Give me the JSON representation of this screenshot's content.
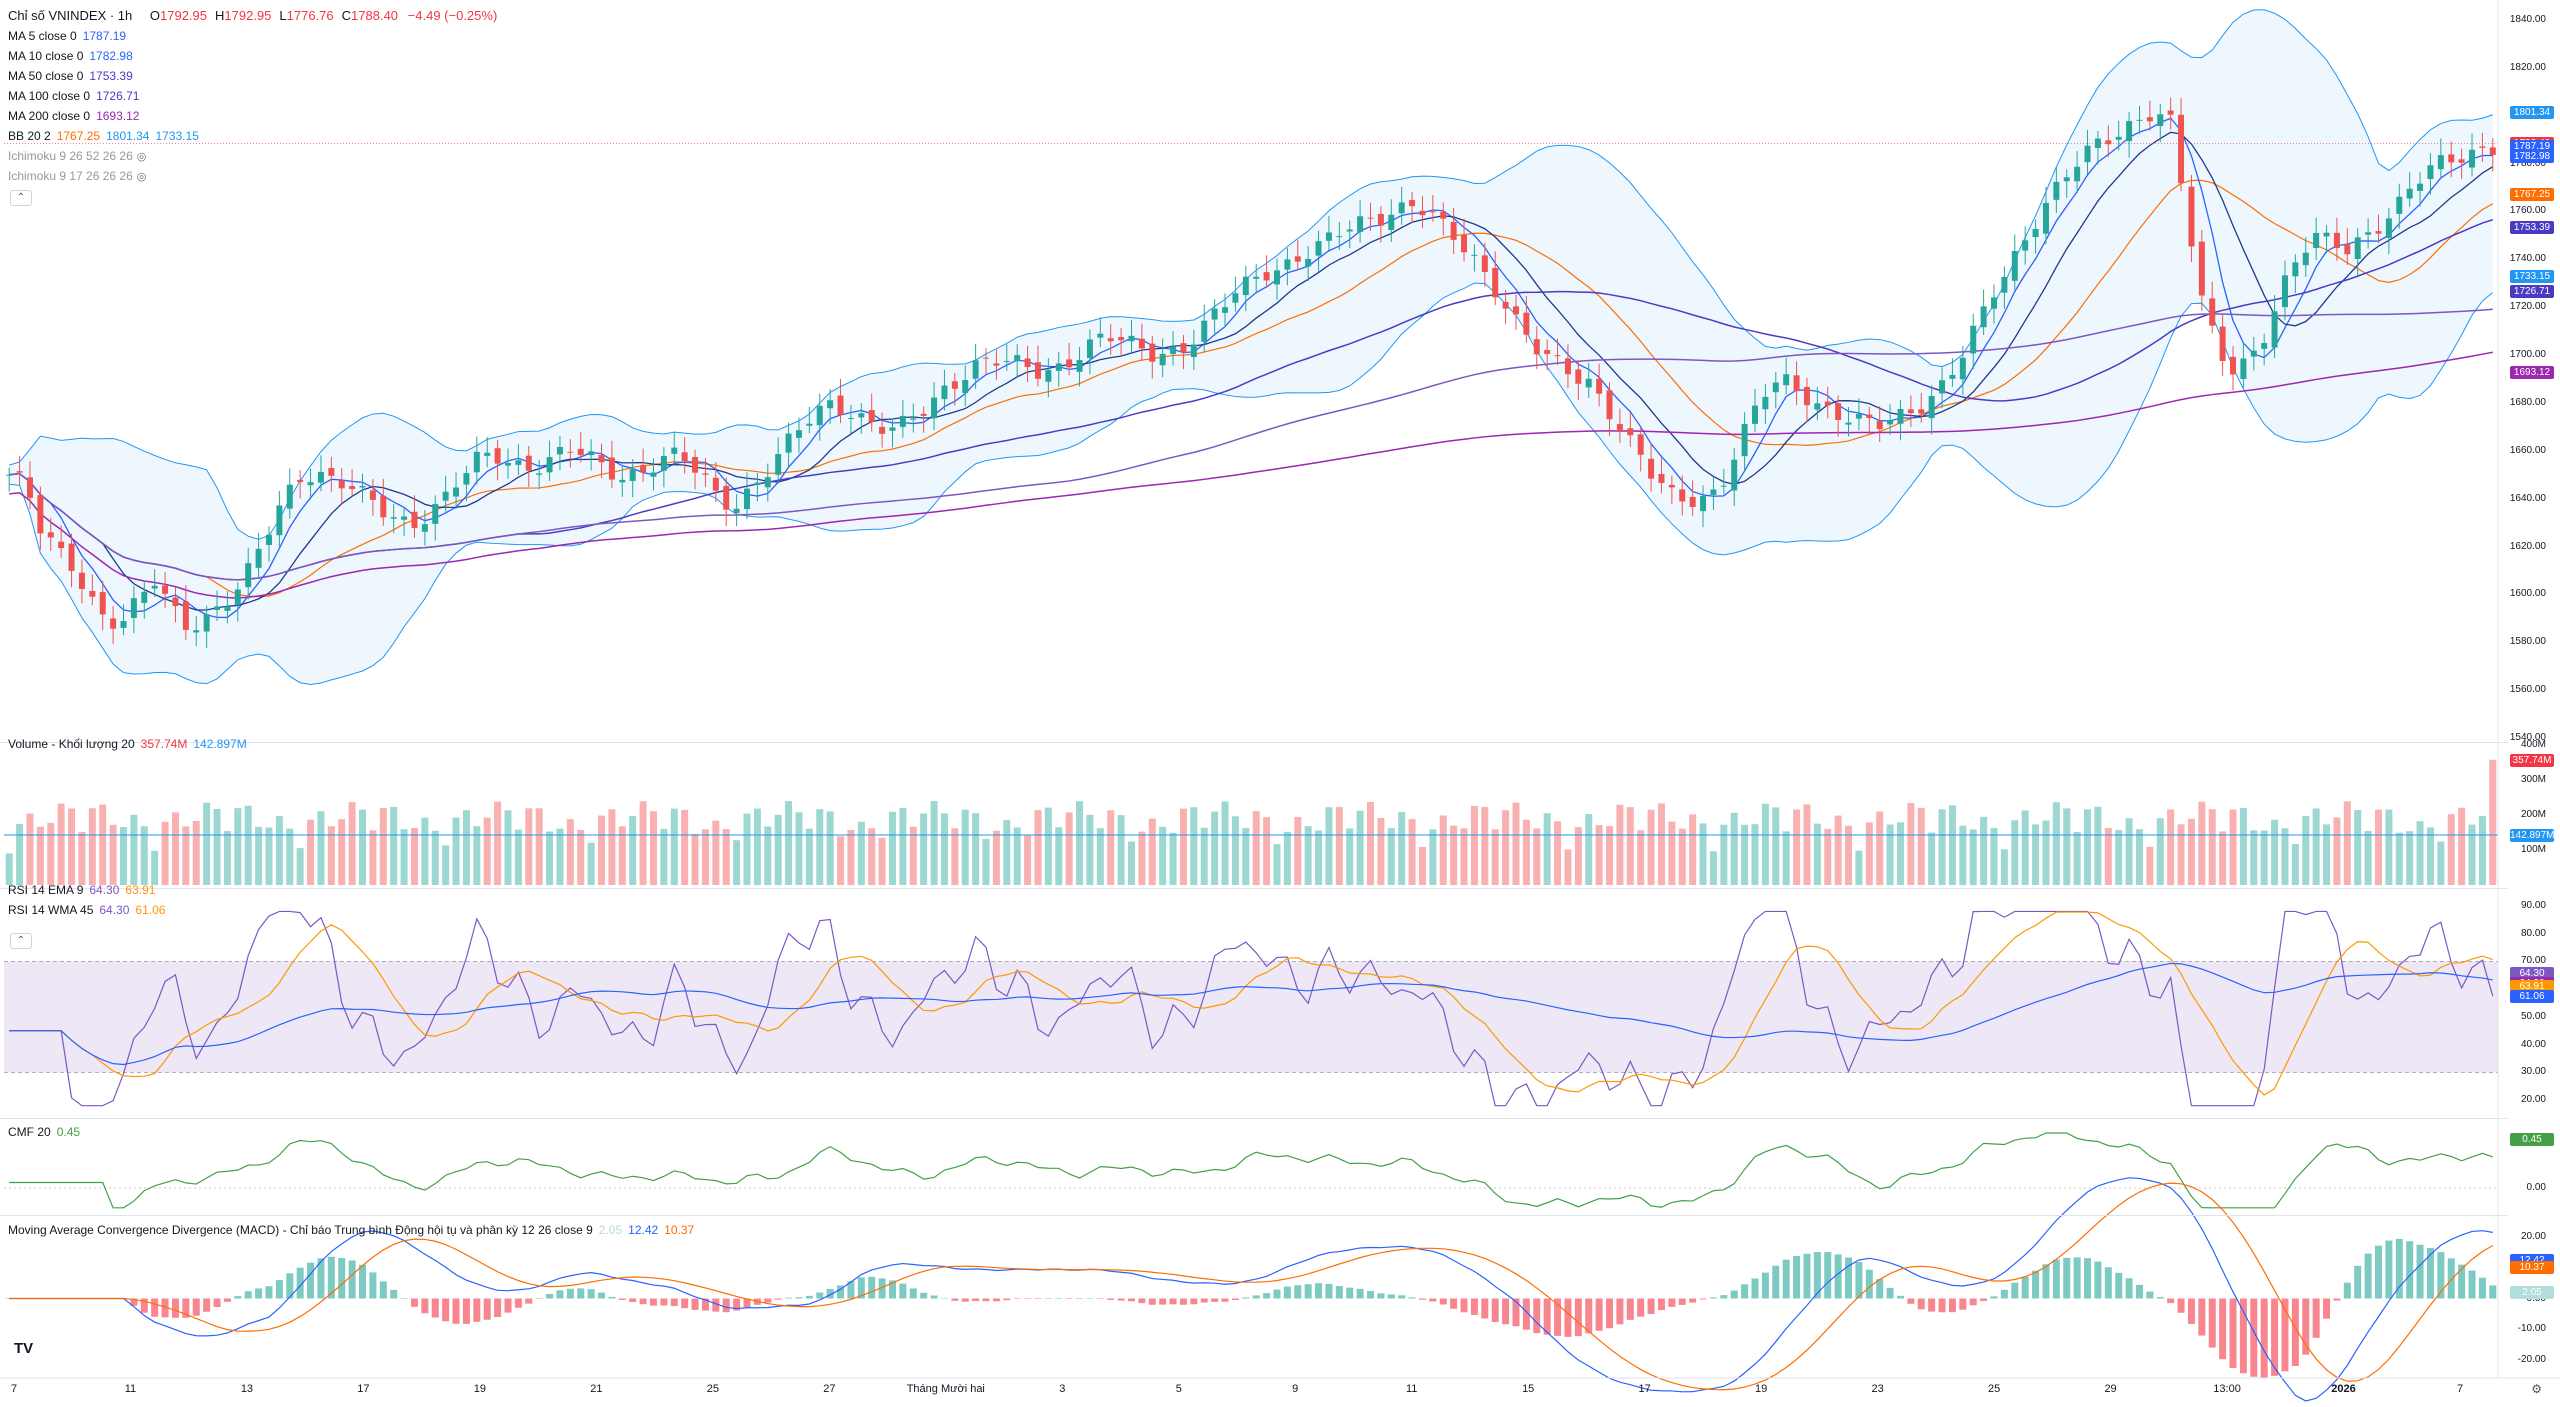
{
  "header": {
    "title": "Chỉ số VNINDEX · 1h",
    "ohlc": [
      {
        "k": "O",
        "v": "1792.95"
      },
      {
        "k": "H",
        "v": "1792.95"
      },
      {
        "k": "L",
        "v": "1776.76"
      },
      {
        "k": "C",
        "v": "1788.40"
      }
    ],
    "change": "−4.49 (−0.25%)"
  },
  "indicators": [
    {
      "label": "MA 5 close 0",
      "values": [
        "1787.19"
      ],
      "colors": [
        "#2962ff"
      ]
    },
    {
      "label": "MA 10 close 0",
      "values": [
        "1782.98"
      ],
      "colors": [
        "#2962ff"
      ]
    },
    {
      "label": "MA 50 close 0",
      "values": [
        "1753.39"
      ],
      "colors": [
        "#4a3bc4"
      ]
    },
    {
      "label": "MA 100 close 0",
      "values": [
        "1726.71"
      ],
      "colors": [
        "#4a3bc4"
      ]
    },
    {
      "label": "MA 200 close 0",
      "values": [
        "1693.12"
      ],
      "colors": [
        "#9c27b0"
      ]
    },
    {
      "label": "BB 20 2",
      "values": [
        "1767.25",
        "1801.34",
        "1733.15"
      ],
      "colors": [
        "#ff6d00",
        "#2196f3",
        "#2196f3"
      ]
    },
    {
      "label": "Ichimoku 9 26 52 26 26",
      "values": [],
      "colors": [],
      "hidden": true
    },
    {
      "label": "Ichimoku 9 17 26 26 26",
      "values": [],
      "colors": [],
      "hidden": true
    }
  ],
  "volume_legend": {
    "label": "Volume - Khối lượng 20",
    "values": [
      "357.74M",
      "142.897M"
    ]
  },
  "rsi_legend": [
    {
      "label": "RSI 14 EMA 9",
      "values": [
        "64.30",
        "63.91"
      ]
    },
    {
      "label": "RSI 14 WMA 45",
      "values": [
        "64.30",
        "61.06"
      ]
    }
  ],
  "cmf_legend": {
    "label": "CMF 20",
    "values": [
      "0.45"
    ]
  },
  "macd_legend": {
    "label": "Moving Average Convergence Divergence (MACD) - Chỉ báo Trung bình Động hội tụ và phân kỳ 12 26 close 9",
    "values": [
      "2.05",
      "12.42",
      "10.37"
    ]
  },
  "price_axis_ticks": [
    "1840.00",
    "1820.00",
    "1800.00",
    "1780.00",
    "1760.00",
    "1740.00",
    "1720.00",
    "1700.00",
    "1680.00",
    "1660.00",
    "1640.00",
    "1620.00",
    "1600.00",
    "1580.00",
    "1560.00",
    "1540.00"
  ],
  "price_tags": [
    {
      "text": "1801.34",
      "color": "#2196f3"
    },
    {
      "text": "1788.40",
      "color": "#f23645"
    },
    {
      "text": "1787.19",
      "color": "#2962ff"
    },
    {
      "text": "1782.98",
      "color": "#2962ff"
    },
    {
      "text": "1767.25",
      "color": "#ff6d00"
    },
    {
      "text": "1753.39",
      "color": "#4a3bc4"
    },
    {
      "text": "1733.15",
      "color": "#2196f3"
    },
    {
      "text": "1726.71",
      "color": "#4a3bc4"
    },
    {
      "text": "1693.12",
      "color": "#9c27b0"
    }
  ],
  "volume_axis_ticks": [
    "400M",
    "300M",
    "200M",
    "100M"
  ],
  "volume_tags": [
    {
      "text": "357.74M",
      "color": "#f23645"
    },
    {
      "text": "142.897M",
      "color": "#2196f3"
    }
  ],
  "rsi_axis_ticks": [
    "90.00",
    "80.00",
    "70.00",
    "60.00",
    "50.00",
    "40.00",
    "30.00",
    "20.00"
  ],
  "rsi_tags": [
    {
      "text": "64.30",
      "color": "#7e57c2"
    },
    {
      "text": "64.30",
      "color": "#9c27b0"
    },
    {
      "text": "63.91",
      "color": "#ff9800"
    },
    {
      "text": "61.06",
      "color": "#2962ff"
    }
  ],
  "cmf_axis_ticks": [
    "0.00"
  ],
  "cmf_tags": [
    {
      "text": "0.45",
      "color": "#43a047"
    }
  ],
  "macd_axis_ticks": [
    "20.00",
    "0.00",
    "-10.00",
    "-20.00"
  ],
  "macd_tags": [
    {
      "text": "12.42",
      "color": "#2962ff"
    },
    {
      "text": "10.37",
      "color": "#ff6d00"
    },
    {
      "text": "2.05",
      "color": "#b2dfdb"
    }
  ],
  "x_axis_labels": [
    "7",
    "11",
    "13",
    "17",
    "19",
    "21",
    "25",
    "27",
    "Tháng Mười hai",
    "3",
    "5",
    "9",
    "11",
    "15",
    "17",
    "19",
    "23",
    "25",
    "29",
    "13:00",
    "2026",
    "7"
  ],
  "colors": {
    "up": "#26a69a",
    "down": "#ef5350",
    "upVol": "rgba(38,166,154,0.45)",
    "downVol": "rgba(239,83,80,0.45)"
  },
  "chart_data": [
    {
      "type": "candlestick",
      "title": "Chỉ số VNINDEX · 1h",
      "ylim": [
        1540,
        1845
      ],
      "close_series": [
        1650,
        1645,
        1625,
        1618,
        1612,
        1600,
        1590,
        1588,
        1596,
        1605,
        1595,
        1588,
        1590,
        1595,
        1600,
        1610,
        1625,
        1640,
        1650,
        1652,
        1648,
        1645,
        1640,
        1635,
        1632,
        1630,
        1635,
        1640,
        1648,
        1655,
        1658,
        1656,
        1654,
        1655,
        1658,
        1660,
        1656,
        1652,
        1650,
        1652,
        1655,
        1658,
        1655,
        1648,
        1640,
        1638,
        1645,
        1652,
        1660,
        1668,
        1675,
        1680,
        1678,
        1674,
        1670,
        1668,
        1672,
        1678,
        1686,
        1692,
        1697,
        1698,
        1696,
        1694,
        1692,
        1695,
        1700,
        1705,
        1708,
        1705,
        1702,
        1700,
        1702,
        1705,
        1712,
        1718,
        1725,
        1730,
        1735,
        1738,
        1742,
        1745,
        1748,
        1752,
        1755,
        1758,
        1762,
        1764,
        1760,
        1752,
        1745,
        1738,
        1730,
        1720,
        1710,
        1700,
        1695,
        1690,
        1688,
        1680,
        1670,
        1660,
        1648,
        1640,
        1638,
        1640,
        1645,
        1660,
        1675,
        1685,
        1688,
        1684,
        1680,
        1678,
        1675,
        1672,
        1670,
        1672,
        1676,
        1682,
        1690,
        1700,
        1712,
        1724,
        1735,
        1748,
        1762,
        1772,
        1780,
        1785,
        1788,
        1792,
        1798,
        1804,
        1800,
        1760,
        1720,
        1700,
        1692,
        1700,
        1712,
        1730,
        1742,
        1748,
        1746,
        1744,
        1750,
        1756,
        1762,
        1770,
        1776,
        1780,
        1783,
        1786,
        1788
      ]
    },
    {
      "type": "bar",
      "title": "Volume - Khối lượng 20",
      "ylim": [
        0,
        400
      ]
    },
    {
      "type": "line",
      "title": "RSI 14",
      "ylim": [
        15,
        95
      ]
    },
    {
      "type": "line",
      "title": "CMF 20",
      "ylim": [
        -0.2,
        0.6
      ]
    },
    {
      "type": "bar",
      "title": "MACD 12 26 close 9",
      "ylim": [
        -25,
        25
      ]
    }
  ]
}
